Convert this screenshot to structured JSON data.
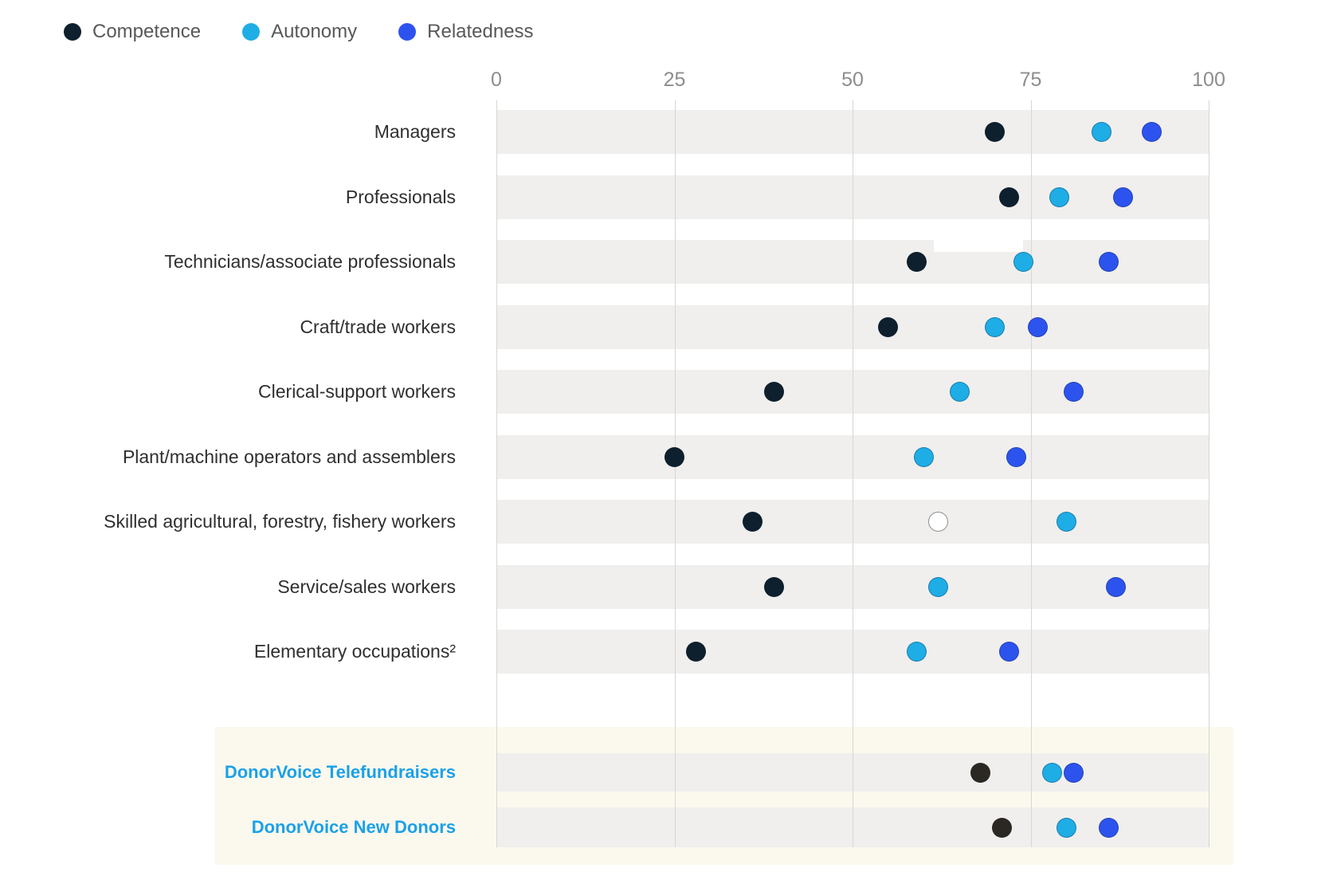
{
  "chart_data": {
    "type": "scatter",
    "title": "",
    "x_axis": {
      "min": 0,
      "max": 100,
      "ticks": [
        "0",
        "25",
        "50",
        "75",
        "100"
      ],
      "tick_values": [
        0,
        25,
        50,
        75,
        100
      ]
    },
    "grid": true,
    "legend_position": "top-left",
    "legend": [
      {
        "name": "Competence",
        "color": "#0e1f2d"
      },
      {
        "name": "Autonomy",
        "color": "#1fade6"
      },
      {
        "name": "Relatedness",
        "color": "#2d53ef"
      }
    ],
    "rows": [
      {
        "label": "Managers",
        "dots": [
          {
            "series": "Competence",
            "value": 70
          },
          {
            "series": "Autonomy",
            "value": 85
          },
          {
            "series": "Relatedness",
            "value": 92
          }
        ]
      },
      {
        "label": "Professionals",
        "dots": [
          {
            "series": "Competence",
            "value": 72
          },
          {
            "series": "Autonomy",
            "value": 79
          },
          {
            "series": "Relatedness",
            "value": 88
          }
        ]
      },
      {
        "label": "Technicians/associate professionals",
        "dots": [
          {
            "series": "Competence",
            "value": 59
          },
          {
            "series": "Autonomy",
            "value": 74
          },
          {
            "series": "Relatedness",
            "value": 86
          }
        ]
      },
      {
        "label": "Craft/trade workers",
        "dots": [
          {
            "series": "Competence",
            "value": 55
          },
          {
            "series": "Autonomy",
            "value": 70
          },
          {
            "series": "Relatedness",
            "value": 76
          }
        ]
      },
      {
        "label": "Clerical-support workers",
        "dots": [
          {
            "series": "Competence",
            "value": 39
          },
          {
            "series": "Autonomy",
            "value": 65
          },
          {
            "series": "Relatedness",
            "value": 81
          }
        ]
      },
      {
        "label": "Plant/machine operators and assemblers",
        "dots": [
          {
            "series": "Competence",
            "value": 25
          },
          {
            "series": "Autonomy",
            "value": 60
          },
          {
            "series": "Relatedness",
            "value": 73
          }
        ]
      },
      {
        "label": "Skilled agricultural, forestry, fishery workers",
        "dots": [
          {
            "series": "Competence",
            "value": 36
          },
          {
            "series": "Hollow",
            "value": 62,
            "color": "#ffffff",
            "border": "#8f8f8f"
          },
          {
            "series": "Autonomy",
            "value": 80
          }
        ]
      },
      {
        "label": "Service/sales workers",
        "dots": [
          {
            "series": "Competence",
            "value": 39
          },
          {
            "series": "Autonomy",
            "value": 62
          },
          {
            "series": "Relatedness",
            "value": 87
          }
        ]
      },
      {
        "label": "Elementary occupations²",
        "dots": [
          {
            "series": "Competence",
            "value": 28
          },
          {
            "series": "Autonomy",
            "value": 59
          },
          {
            "series": "Relatedness",
            "value": 72
          }
        ]
      },
      {
        "label": "DonorVoice Telefundraisers",
        "highlight": true,
        "dots": [
          {
            "series": "Competence",
            "value": 68,
            "color": "#2b2823"
          },
          {
            "series": "Autonomy",
            "value": 78
          },
          {
            "series": "Relatedness",
            "value": 81
          }
        ]
      },
      {
        "label": "DonorVoice New Donors",
        "highlight": true,
        "dots": [
          {
            "series": "Competence",
            "value": 71,
            "color": "#2b2823"
          },
          {
            "series": "Autonomy",
            "value": 80
          },
          {
            "series": "Relatedness",
            "value": 86
          }
        ]
      }
    ]
  },
  "colors": {
    "band_background": "#f0efed",
    "gridline": "#d8d6d2",
    "tick_text": "#8d8d8d",
    "category_text": "#2f2f2f",
    "legend_text": "#585858",
    "highlight_label": "#1ba1e8",
    "highlight_panel": "#fbf8ee",
    "competence": "#0e1f2d",
    "autonomy": "#1fade6",
    "relatedness": "#2d53ef",
    "donorvoice_competence": "#2b2823"
  }
}
